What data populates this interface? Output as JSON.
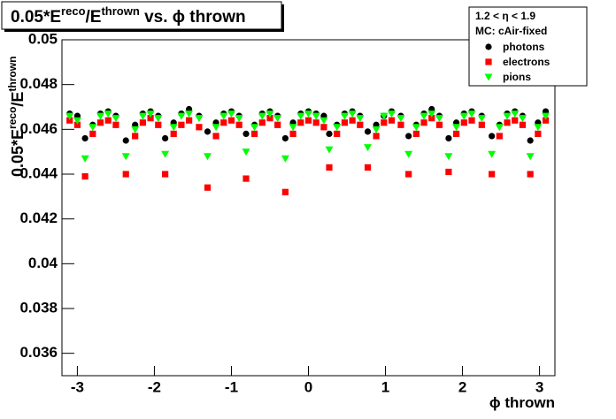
{
  "chart_data": {
    "type": "scatter",
    "title": [
      "0.05*E",
      "reco",
      "/E",
      "thrown",
      " vs. ϕ thrown"
    ],
    "y_label": [
      "0.05*E",
      "reco",
      "/E",
      "thrown"
    ],
    "x_label": "ϕ thrown",
    "legend_header": [
      "1.2 < η < 1.9",
      "MC: cAir-fixed"
    ],
    "legend_position": "upper right",
    "xlim": [
      -3.2,
      3.2
    ],
    "xticks": [
      -3,
      -2,
      -1,
      0,
      1,
      2,
      3
    ],
    "ylim": [
      0.035,
      0.05
    ],
    "yticks": [
      0.036,
      0.038,
      0.04,
      0.042,
      0.044,
      0.046,
      0.048,
      0.05
    ],
    "grid": false,
    "x": [
      -3.1,
      -3.0,
      -2.9,
      -2.8,
      -2.7,
      -2.6,
      -2.5,
      -2.37,
      -2.25,
      -2.15,
      -2.05,
      -1.95,
      -1.86,
      -1.75,
      -1.65,
      -1.55,
      -1.42,
      -1.31,
      -1.2,
      -1.1,
      -1.0,
      -0.9,
      -0.81,
      -0.7,
      -0.6,
      -0.5,
      -0.4,
      -0.3,
      -0.2,
      -0.1,
      0,
      0.1,
      0.2,
      0.27,
      0.37,
      0.47,
      0.57,
      0.67,
      0.77,
      0.88,
      0.98,
      1.08,
      1.2,
      1.3,
      1.4,
      1.5,
      1.6,
      1.7,
      1.82,
      1.92,
      2.02,
      2.12,
      2.25,
      2.38,
      2.48,
      2.58,
      2.68,
      2.78,
      2.88,
      2.98,
      3.08
    ],
    "series": [
      {
        "name": "photons",
        "color": "#000000",
        "marker": "circle",
        "values": [
          0.0467,
          0.0466,
          0.0456,
          0.0462,
          0.0467,
          0.0468,
          0.0466,
          0.0455,
          0.0462,
          0.0467,
          0.0468,
          0.0466,
          0.0456,
          0.0463,
          0.0467,
          0.0469,
          0.0466,
          0.0459,
          0.0463,
          0.0467,
          0.0468,
          0.0466,
          0.0458,
          0.0462,
          0.0467,
          0.0468,
          0.0466,
          0.0456,
          0.0463,
          0.0467,
          0.0468,
          0.0467,
          0.0466,
          0.0458,
          0.0462,
          0.0467,
          0.0468,
          0.0466,
          0.0459,
          0.0462,
          0.0466,
          0.0468,
          0.0466,
          0.0457,
          0.0462,
          0.0467,
          0.0469,
          0.0466,
          0.0456,
          0.0463,
          0.0467,
          0.0468,
          0.0466,
          0.0457,
          0.0462,
          0.0467,
          0.0468,
          0.0466,
          0.0455,
          0.0463,
          0.0468
        ]
      },
      {
        "name": "electrons",
        "color": "#ff0000",
        "marker": "square",
        "values": [
          0.0464,
          0.0462,
          0.0439,
          0.0458,
          0.0463,
          0.0464,
          0.0462,
          0.044,
          0.0457,
          0.0463,
          0.0465,
          0.0462,
          0.044,
          0.0458,
          0.0462,
          0.0464,
          0.0461,
          0.0434,
          0.0457,
          0.0463,
          0.0464,
          0.0462,
          0.0438,
          0.0458,
          0.0463,
          0.0465,
          0.0462,
          0.0432,
          0.0458,
          0.0463,
          0.0464,
          0.0463,
          0.0461,
          0.0443,
          0.0458,
          0.0463,
          0.0464,
          0.0462,
          0.0443,
          0.0457,
          0.0463,
          0.0464,
          0.0462,
          0.044,
          0.0458,
          0.0463,
          0.0465,
          0.0462,
          0.0441,
          0.0458,
          0.0463,
          0.0464,
          0.0462,
          0.044,
          0.0457,
          0.0463,
          0.0464,
          0.0462,
          0.044,
          0.0458,
          0.0464
        ]
      },
      {
        "name": "pions",
        "color": "#00ff00",
        "marker": "triangle",
        "values": [
          0.0466,
          0.0464,
          0.0447,
          0.0461,
          0.0466,
          0.0467,
          0.0465,
          0.0448,
          0.046,
          0.0466,
          0.0467,
          0.0465,
          0.0449,
          0.0461,
          0.0466,
          0.0467,
          0.0465,
          0.0448,
          0.0461,
          0.0466,
          0.0467,
          0.0465,
          0.045,
          0.0461,
          0.0466,
          0.0467,
          0.0465,
          0.0447,
          0.0461,
          0.0466,
          0.0467,
          0.0466,
          0.0464,
          0.0451,
          0.0461,
          0.0466,
          0.0467,
          0.0465,
          0.0452,
          0.046,
          0.0466,
          0.0467,
          0.0465,
          0.0449,
          0.0461,
          0.0466,
          0.0467,
          0.0465,
          0.0448,
          0.0461,
          0.0466,
          0.0467,
          0.0465,
          0.0449,
          0.0461,
          0.0466,
          0.0467,
          0.0465,
          0.0448,
          0.0461,
          0.0466
        ]
      }
    ]
  }
}
